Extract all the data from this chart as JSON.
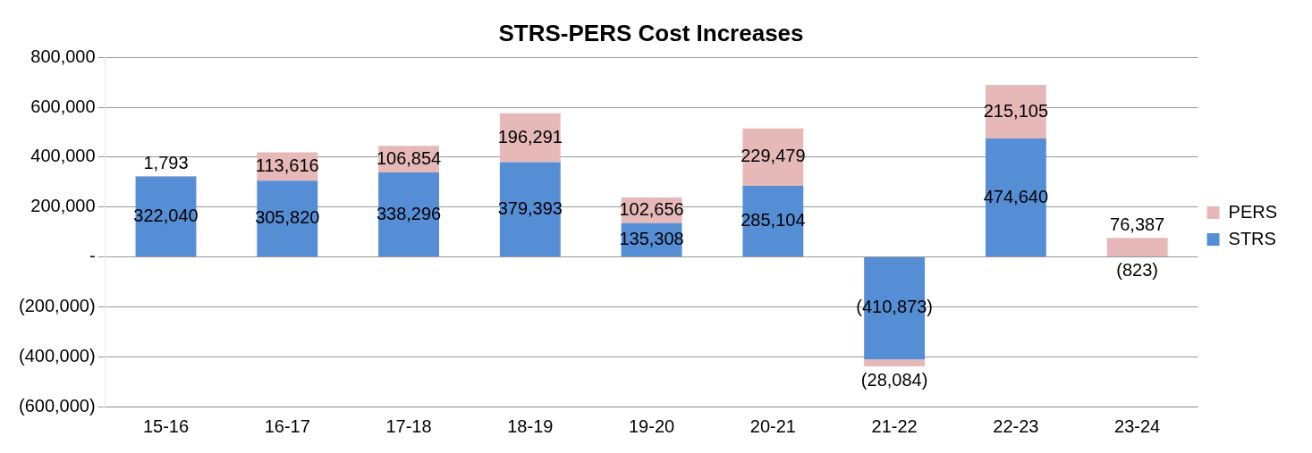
{
  "chart_data": {
    "type": "bar",
    "title": "STRS-PERS Cost Increases",
    "stacked": true,
    "categories": [
      "15-16",
      "16-17",
      "17-18",
      "18-19",
      "19-20",
      "20-21",
      "21-22",
      "22-23",
      "23-24"
    ],
    "series": [
      {
        "name": "STRS",
        "color": "#558ed5",
        "values": [
          322040,
          305820,
          338296,
          379393,
          135308,
          285104,
          -410873,
          474640,
          -823
        ],
        "value_labels": [
          "322,040",
          "305,820",
          "338,296",
          "379,393",
          "135,308",
          "285,104",
          "(410,873)",
          "474,640",
          "(823)"
        ]
      },
      {
        "name": "PERS",
        "color": "#e6b9b8",
        "values": [
          1793,
          113616,
          106854,
          196291,
          102656,
          229479,
          -28084,
          215105,
          76387
        ],
        "value_labels": [
          "1,793",
          "113,616",
          "106,854",
          "196,291",
          "102,656",
          "229,479",
          "(28,084)",
          "215,105",
          "76,387"
        ]
      }
    ],
    "ylim": [
      -600000,
      800000
    ],
    "yticks": [
      {
        "value": -600000,
        "label": "(600,000)"
      },
      {
        "value": -400000,
        "label": "(400,000)"
      },
      {
        "value": -200000,
        "label": "(200,000)"
      },
      {
        "value": 0,
        "label": "-"
      },
      {
        "value": 200000,
        "label": "200,000"
      },
      {
        "value": 400000,
        "label": "400,000"
      },
      {
        "value": 600000,
        "label": "600,000"
      },
      {
        "value": 800000,
        "label": "800,000"
      }
    ],
    "grid": "y",
    "legend": "right"
  }
}
